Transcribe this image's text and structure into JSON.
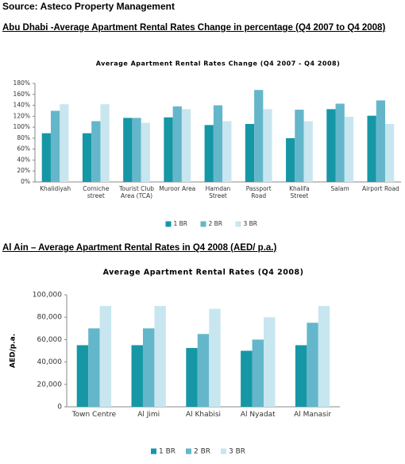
{
  "source": "Source: Asteco Property Management",
  "headings": [
    "Abu Dhabi -Average Apartment Rental Rates Change in percentage (Q4 2007 to Q4 2008)",
    "Al Ain – Average Apartment Rental Rates in Q4 2008 (AED/ p.a.)"
  ],
  "chart_data": [
    {
      "type": "bar",
      "title": "Average Apartment Rental Rates Change (Q4 2007 - Q4 2008)",
      "categories": [
        "Khalidiyah",
        "Corniche street",
        "Tourist Club Area (TCA)",
        "Muroor Area",
        "Hamdan Street",
        "Passport Road",
        "Khalifa Street",
        "Salam",
        "Airport Road"
      ],
      "series": [
        {
          "name": "1 BR",
          "color": "#1597a6",
          "values": [
            89,
            89,
            117,
            118,
            104,
            106,
            80,
            133,
            121
          ]
        },
        {
          "name": "2 BR",
          "color": "#64b7ca",
          "values": [
            130,
            111,
            117,
            138,
            140,
            168,
            132,
            143,
            149
          ]
        },
        {
          "name": "3 BR",
          "color": "#c8e6ef",
          "values": [
            142,
            142,
            108,
            133,
            111,
            133,
            111,
            119,
            106
          ]
        }
      ],
      "ylim": [
        0,
        180
      ],
      "yticks": [
        {
          "value": 0,
          "label": "0%"
        },
        {
          "value": 20,
          "label": "20%"
        },
        {
          "value": 40,
          "label": "40%"
        },
        {
          "value": 60,
          "label": "60%"
        },
        {
          "value": 80,
          "label": "80%"
        },
        {
          "value": 100,
          "label": "100%"
        },
        {
          "value": 120,
          "label": "120%"
        },
        {
          "value": 140,
          "label": "140%"
        },
        {
          "value": 160,
          "label": "160%"
        },
        {
          "value": 180,
          "label": "180%"
        }
      ],
      "grid": false,
      "legend": "bottom"
    },
    {
      "type": "bar",
      "title": "Average Apartment Rental Rates (Q4 2008)",
      "ylabel": "AED/p.a.",
      "categories": [
        "Town Centre",
        "Al Jimi",
        "Al Khabisi",
        "Al Nyadat",
        "Al Manasir"
      ],
      "series": [
        {
          "name": "1 BR",
          "color": "#1597a6",
          "values": [
            55000,
            55000,
            52500,
            50000,
            55000
          ]
        },
        {
          "name": "2 BR",
          "color": "#64b7ca",
          "values": [
            70000,
            70000,
            65000,
            60000,
            75000
          ]
        },
        {
          "name": "3 BR",
          "color": "#c8e6ef",
          "values": [
            90000,
            90000,
            87500,
            80000,
            90000
          ]
        }
      ],
      "ylim": [
        0,
        100000
      ],
      "yticks": [
        0,
        {
          "value": 20000,
          "label": "20,000"
        },
        {
          "value": 40000,
          "label": "40,000"
        },
        {
          "value": 60000,
          "label": "60,000"
        },
        {
          "value": 80000,
          "label": "80,000"
        },
        {
          "value": 100000,
          "label": "100,000"
        }
      ],
      "grid": false,
      "legend": "bottom"
    }
  ]
}
